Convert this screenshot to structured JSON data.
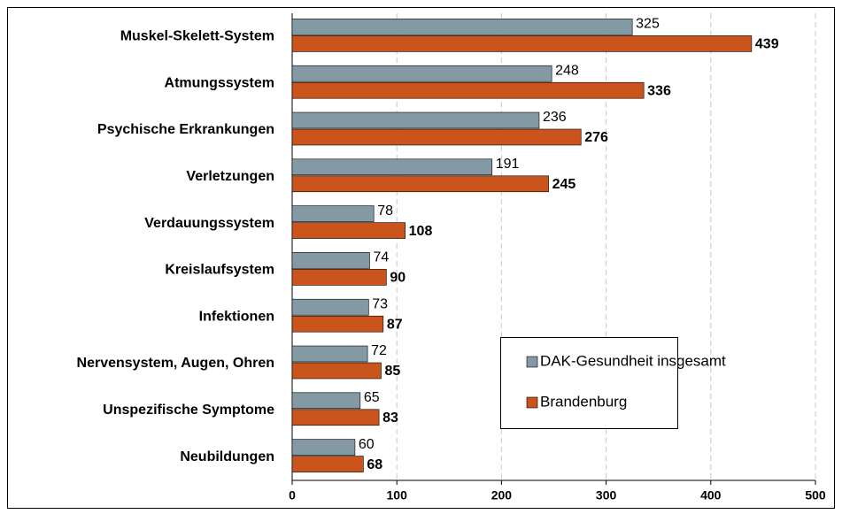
{
  "chart_data": {
    "type": "bar",
    "orientation": "horizontal",
    "categories": [
      "Muskel-Skelett-System",
      "Atmungssystem",
      "Psychische Erkrankungen",
      "Verletzungen",
      "Verdauungssystem",
      "Kreislaufsystem",
      "Infektionen",
      "Nervensystem, Augen, Ohren",
      "Unspezifische Symptome",
      "Neubildungen"
    ],
    "series": [
      {
        "name": "DAK-Gesundheit insgesamt",
        "color": "#8399a3",
        "values": [
          325,
          248,
          236,
          191,
          78,
          74,
          73,
          72,
          65,
          60
        ]
      },
      {
        "name": "Brandenburg",
        "color": "#c9541c",
        "values": [
          439,
          336,
          276,
          245,
          108,
          90,
          87,
          85,
          83,
          68
        ]
      }
    ],
    "xlim": [
      0,
      500
    ],
    "xticks": [
      0,
      100,
      200,
      300,
      400,
      500
    ],
    "grid": true,
    "legend": "lower right"
  }
}
